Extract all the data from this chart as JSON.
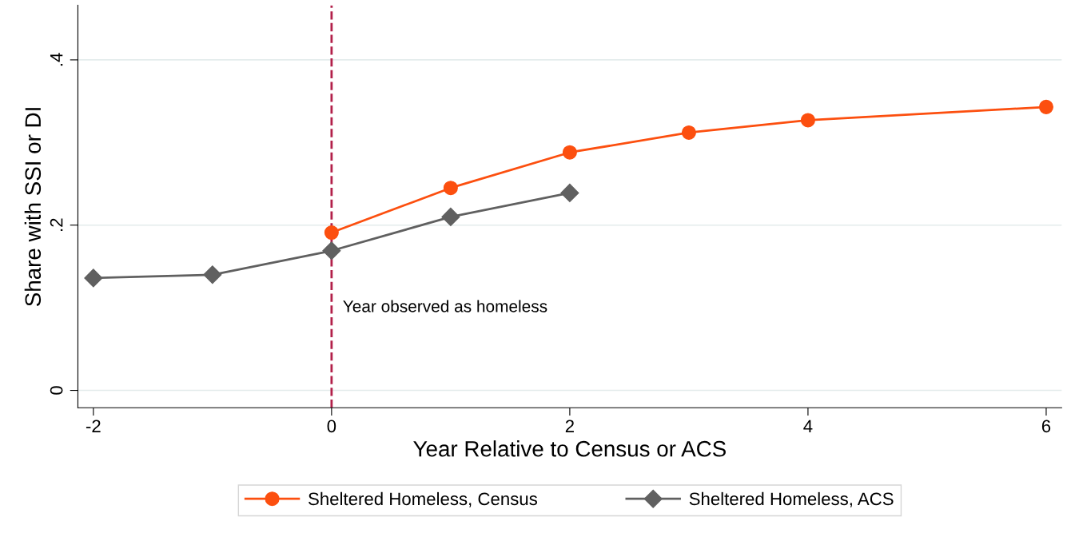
{
  "chart_data": {
    "type": "line",
    "xlabel": "Year Relative to Census or ACS",
    "ylabel": "Share with SSI or DI",
    "xlim": [
      -2.13,
      6.13
    ],
    "xticks": [
      {
        "value": -2,
        "label": "-2"
      },
      0,
      2,
      4,
      6
    ],
    "ylim": [
      -0.021,
      0.466
    ],
    "yticks": [
      0,
      {
        "value": 0.2,
        "label": ".2"
      },
      {
        "value": 0.4,
        "label": ".4"
      }
    ],
    "grid": "y",
    "legend": "bottom",
    "ref_lines": [
      {
        "axis": "x",
        "value": 0,
        "color": "#b2204a",
        "line_style": "dashed"
      }
    ],
    "annotations": [
      {
        "text": "Year observed as homeless",
        "x": 0,
        "y": 0.1
      }
    ],
    "series": [
      {
        "name": "Sheltered Homeless, Census",
        "color": "#fc4f0f",
        "marker": "circle",
        "x": [
          0,
          1,
          2,
          3,
          4,
          6
        ],
        "values": [
          0.191,
          0.245,
          0.288,
          0.312,
          0.327,
          0.343
        ]
      },
      {
        "name": "Sheltered Homeless, ACS",
        "color": "#606060",
        "marker": "diamond",
        "x": [
          -2,
          -1,
          0,
          1,
          2
        ],
        "values": [
          0.136,
          0.14,
          0.169,
          0.21,
          0.239
        ]
      }
    ]
  }
}
